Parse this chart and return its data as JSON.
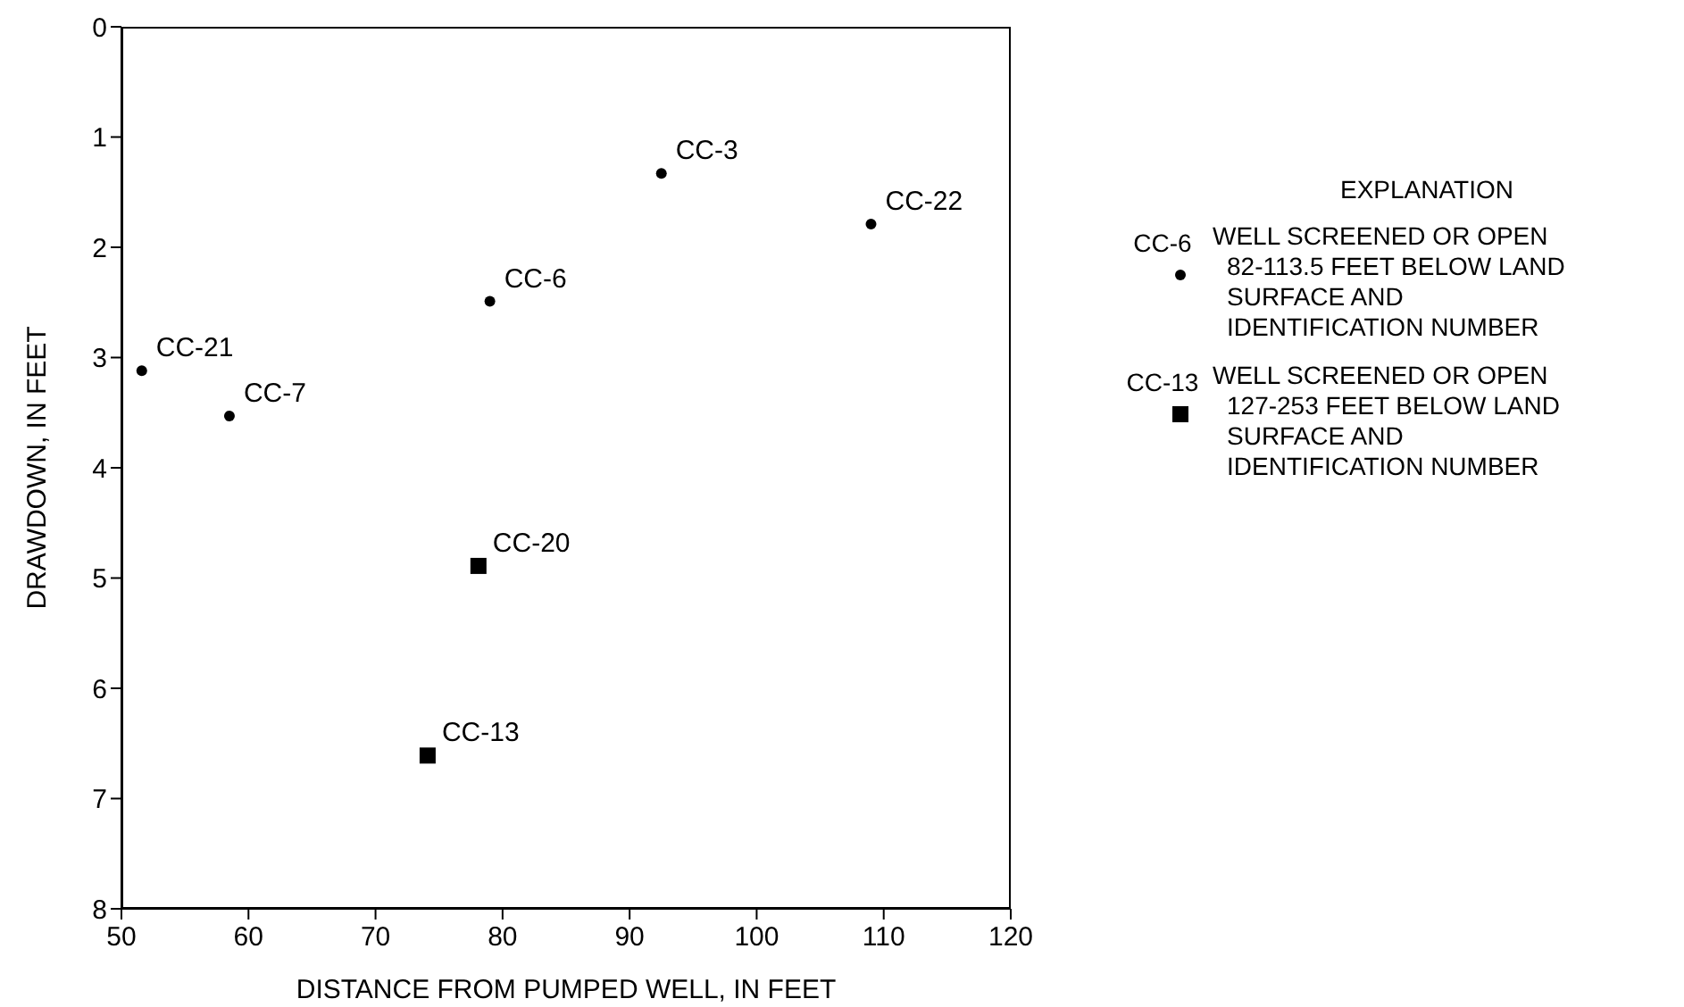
{
  "chart_data": {
    "type": "scatter",
    "xlabel": "DISTANCE FROM PUMPED WELL, IN FEET",
    "ylabel": "DRAWDOWN, IN FEET",
    "legend_title": "EXPLANATION",
    "legend": "right",
    "grid": false,
    "xlim": [
      50,
      120
    ],
    "xticks": [
      50,
      60,
      70,
      80,
      90,
      100,
      110,
      120
    ],
    "ylim": [
      8,
      0
    ],
    "yticks": [
      0,
      1,
      2,
      3,
      4,
      5,
      6,
      7,
      8
    ],
    "series": [
      {
        "name": "WELL SCREENED OR OPEN 82-113.5 FEET BELOW LAND SURFACE AND IDENTIFICATION NUMBER",
        "color": "#000000",
        "marker": "circle",
        "x": [
          92.5,
          109.0,
          79.0,
          51.6,
          58.5
        ],
        "values": [
          1.33,
          1.79,
          2.49,
          3.12,
          3.53
        ],
        "value_labels": [
          "CC-3",
          "CC-22",
          "CC-6",
          "CC-21",
          "CC-7"
        ]
      },
      {
        "name": "WELL SCREENED OR OPEN 127-253 FEET BELOW LAND SURFACE AND IDENTIFICATION NUMBER",
        "color": "#000000",
        "marker": "square",
        "x": [
          78.1,
          74.1
        ],
        "values": [
          4.89,
          6.61
        ],
        "value_labels": [
          "CC-20",
          "CC-13"
        ]
      }
    ],
    "annotations": [
      "CC-6",
      "CC-13"
    ]
  }
}
